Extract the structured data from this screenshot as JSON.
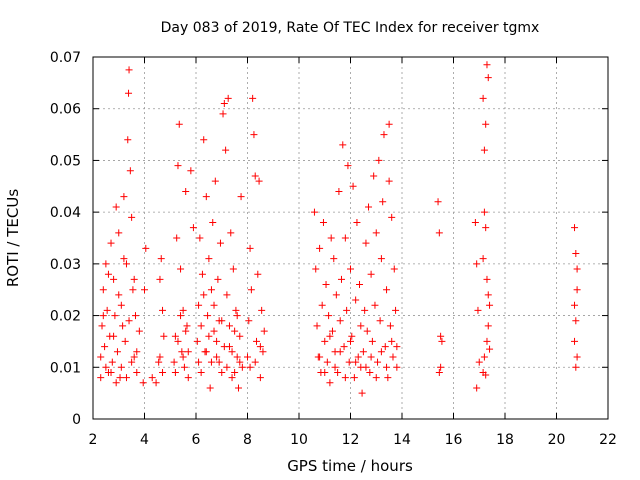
{
  "chart_data": {
    "type": "scatter",
    "title": "Day 083 of 2019, Rate Of TEC Index for receiver tgmx",
    "xlabel": "GPS time / hours",
    "ylabel": "ROTI / TECUs",
    "xlim": [
      2,
      22
    ],
    "ylim": [
      0,
      0.07
    ],
    "xticks": [
      "2",
      "4",
      "6",
      "8",
      "10",
      "12",
      "14",
      "16",
      "18",
      "20",
      "22"
    ],
    "yticks": [
      "0",
      "0.01",
      "0.02",
      "0.03",
      "0.04",
      "0.05",
      "0.06",
      "0.07"
    ],
    "grid": true,
    "marker": "+",
    "color": "#ff0000",
    "series": [
      {
        "name": "ROTI",
        "points": [
          [
            2.3,
            0.012
          ],
          [
            2.35,
            0.018
          ],
          [
            2.4,
            0.025
          ],
          [
            2.45,
            0.014
          ],
          [
            2.5,
            0.03
          ],
          [
            2.55,
            0.021
          ],
          [
            2.6,
            0.009
          ],
          [
            2.65,
            0.016
          ],
          [
            2.7,
            0.034
          ],
          [
            2.75,
            0.011
          ],
          [
            2.8,
            0.027
          ],
          [
            2.85,
            0.02
          ],
          [
            2.9,
            0.041
          ],
          [
            2.95,
            0.013
          ],
          [
            3.0,
            0.036
          ],
          [
            3.05,
            0.008
          ],
          [
            3.1,
            0.022
          ],
          [
            3.15,
            0.018
          ],
          [
            3.2,
            0.043
          ],
          [
            3.25,
            0.015
          ],
          [
            3.3,
            0.03
          ],
          [
            3.35,
            0.054
          ],
          [
            3.38,
            0.063
          ],
          [
            3.4,
            0.0675
          ],
          [
            3.45,
            0.048
          ],
          [
            3.5,
            0.039
          ],
          [
            3.55,
            0.025
          ],
          [
            3.6,
            0.012
          ],
          [
            3.65,
            0.02
          ],
          [
            3.7,
            0.009
          ],
          [
            3.8,
            0.017
          ],
          [
            2.3,
            0.008
          ],
          [
            2.5,
            0.01
          ],
          [
            2.7,
            0.009
          ],
          [
            2.9,
            0.007
          ],
          [
            3.1,
            0.01
          ],
          [
            3.3,
            0.008
          ],
          [
            3.5,
            0.011
          ],
          [
            3.7,
            0.013
          ],
          [
            2.4,
            0.02
          ],
          [
            2.6,
            0.028
          ],
          [
            2.8,
            0.016
          ],
          [
            3.0,
            0.024
          ],
          [
            3.2,
            0.031
          ],
          [
            3.4,
            0.019
          ],
          [
            3.6,
            0.027
          ],
          [
            3.95,
            0.007
          ],
          [
            4.0,
            0.025
          ],
          [
            4.05,
            0.033
          ],
          [
            4.3,
            0.008
          ],
          [
            4.45,
            0.007
          ],
          [
            4.55,
            0.011
          ],
          [
            4.6,
            0.027
          ],
          [
            4.65,
            0.031
          ],
          [
            4.7,
            0.021
          ],
          [
            4.75,
            0.016
          ],
          [
            4.6,
            0.012
          ],
          [
            4.7,
            0.009
          ],
          [
            5.15,
            0.011
          ],
          [
            5.2,
            0.016
          ],
          [
            5.25,
            0.035
          ],
          [
            5.3,
            0.049
          ],
          [
            5.35,
            0.057
          ],
          [
            5.4,
            0.029
          ],
          [
            5.45,
            0.013
          ],
          [
            5.5,
            0.021
          ],
          [
            5.55,
            0.01
          ],
          [
            5.6,
            0.044
          ],
          [
            5.65,
            0.018
          ],
          [
            5.7,
            0.008
          ],
          [
            5.8,
            0.048
          ],
          [
            5.9,
            0.037
          ],
          [
            5.2,
            0.009
          ],
          [
            5.3,
            0.015
          ],
          [
            5.4,
            0.02
          ],
          [
            5.5,
            0.012
          ],
          [
            5.6,
            0.017
          ],
          [
            5.7,
            0.013
          ],
          [
            6.05,
            0.015
          ],
          [
            6.1,
            0.022
          ],
          [
            6.15,
            0.035
          ],
          [
            6.2,
            0.009
          ],
          [
            6.25,
            0.028
          ],
          [
            6.3,
            0.054
          ],
          [
            6.35,
            0.013
          ],
          [
            6.4,
            0.043
          ],
          [
            6.45,
            0.02
          ],
          [
            6.5,
            0.031
          ],
          [
            6.55,
            0.006
          ],
          [
            6.6,
            0.025
          ],
          [
            6.65,
            0.038
          ],
          [
            6.7,
            0.017
          ],
          [
            6.75,
            0.046
          ],
          [
            6.8,
            0.012
          ],
          [
            6.85,
            0.027
          ],
          [
            6.9,
            0.019
          ],
          [
            6.95,
            0.034
          ],
          [
            7.0,
            0.009
          ],
          [
            7.05,
            0.059
          ],
          [
            7.1,
            0.061
          ],
          [
            7.15,
            0.052
          ],
          [
            7.2,
            0.024
          ],
          [
            7.25,
            0.062
          ],
          [
            7.3,
            0.014
          ],
          [
            7.35,
            0.036
          ],
          [
            7.4,
            0.008
          ],
          [
            7.45,
            0.029
          ],
          [
            7.5,
            0.017
          ],
          [
            7.55,
            0.021
          ],
          [
            7.6,
            0.012
          ],
          [
            7.65,
            0.006
          ],
          [
            7.7,
            0.016
          ],
          [
            7.75,
            0.043
          ],
          [
            7.8,
            0.01
          ],
          [
            6.1,
            0.011
          ],
          [
            6.2,
            0.018
          ],
          [
            6.3,
            0.024
          ],
          [
            6.4,
            0.013
          ],
          [
            6.5,
            0.016
          ],
          [
            6.6,
            0.011
          ],
          [
            6.7,
            0.022
          ],
          [
            6.8,
            0.015
          ],
          [
            6.9,
            0.011
          ],
          [
            7.0,
            0.019
          ],
          [
            7.1,
            0.014
          ],
          [
            7.2,
            0.01
          ],
          [
            7.3,
            0.018
          ],
          [
            7.4,
            0.013
          ],
          [
            7.5,
            0.009
          ],
          [
            7.6,
            0.02
          ],
          [
            7.7,
            0.011
          ],
          [
            8.0,
            0.012
          ],
          [
            8.05,
            0.019
          ],
          [
            8.1,
            0.033
          ],
          [
            8.15,
            0.025
          ],
          [
            8.2,
            0.062
          ],
          [
            8.25,
            0.055
          ],
          [
            8.3,
            0.047
          ],
          [
            8.35,
            0.015
          ],
          [
            8.4,
            0.028
          ],
          [
            8.45,
            0.046
          ],
          [
            8.5,
            0.008
          ],
          [
            8.55,
            0.021
          ],
          [
            8.6,
            0.013
          ],
          [
            8.65,
            0.017
          ],
          [
            8.1,
            0.01
          ],
          [
            8.3,
            0.011
          ],
          [
            8.5,
            0.014
          ],
          [
            10.6,
            0.04
          ],
          [
            10.65,
            0.029
          ],
          [
            10.7,
            0.018
          ],
          [
            10.75,
            0.012
          ],
          [
            10.8,
            0.033
          ],
          [
            10.85,
            0.009
          ],
          [
            10.9,
            0.022
          ],
          [
            10.95,
            0.038
          ],
          [
            11.0,
            0.015
          ],
          [
            11.05,
            0.026
          ],
          [
            11.1,
            0.011
          ],
          [
            11.15,
            0.02
          ],
          [
            11.2,
            0.007
          ],
          [
            11.25,
            0.035
          ],
          [
            11.3,
            0.017
          ],
          [
            11.35,
            0.031
          ],
          [
            11.4,
            0.013
          ],
          [
            11.45,
            0.024
          ],
          [
            11.5,
            0.009
          ],
          [
            11.55,
            0.044
          ],
          [
            11.6,
            0.019
          ],
          [
            11.65,
            0.027
          ],
          [
            11.7,
            0.053
          ],
          [
            11.75,
            0.014
          ],
          [
            11.8,
            0.035
          ],
          [
            11.85,
            0.021
          ],
          [
            11.9,
            0.049
          ],
          [
            11.95,
            0.011
          ],
          [
            12.0,
            0.029
          ],
          [
            12.05,
            0.016
          ],
          [
            12.1,
            0.045
          ],
          [
            12.15,
            0.008
          ],
          [
            12.2,
            0.023
          ],
          [
            12.25,
            0.038
          ],
          [
            12.3,
            0.012
          ],
          [
            12.35,
            0.026
          ],
          [
            12.4,
            0.018
          ],
          [
            12.45,
            0.005
          ],
          [
            10.8,
            0.012
          ],
          [
            11.0,
            0.009
          ],
          [
            11.2,
            0.016
          ],
          [
            11.4,
            0.01
          ],
          [
            11.6,
            0.013
          ],
          [
            11.8,
            0.008
          ],
          [
            12.0,
            0.015
          ],
          [
            12.2,
            0.011
          ],
          [
            12.4,
            0.01
          ],
          [
            12.5,
            0.013
          ],
          [
            12.55,
            0.021
          ],
          [
            12.6,
            0.034
          ],
          [
            12.65,
            0.017
          ],
          [
            12.7,
            0.041
          ],
          [
            12.75,
            0.009
          ],
          [
            12.8,
            0.028
          ],
          [
            12.85,
            0.015
          ],
          [
            12.9,
            0.047
          ],
          [
            12.95,
            0.022
          ],
          [
            13.0,
            0.036
          ],
          [
            13.05,
            0.011
          ],
          [
            13.1,
            0.05
          ],
          [
            13.15,
            0.019
          ],
          [
            13.2,
            0.031
          ],
          [
            13.25,
            0.042
          ],
          [
            13.3,
            0.055
          ],
          [
            13.35,
            0.014
          ],
          [
            13.4,
            0.025
          ],
          [
            13.45,
            0.008
          ],
          [
            13.5,
            0.046
          ],
          [
            13.55,
            0.018
          ],
          [
            13.6,
            0.039
          ],
          [
            13.65,
            0.012
          ],
          [
            13.7,
            0.029
          ],
          [
            13.75,
            0.021
          ],
          [
            13.8,
            0.01
          ],
          [
            13.5,
            0.057
          ],
          [
            12.6,
            0.01
          ],
          [
            12.8,
            0.012
          ],
          [
            13.0,
            0.008
          ],
          [
            13.2,
            0.013
          ],
          [
            13.4,
            0.01
          ],
          [
            13.6,
            0.015
          ],
          [
            13.8,
            0.014
          ],
          [
            15.4,
            0.042
          ],
          [
            15.45,
            0.036
          ],
          [
            15.5,
            0.016
          ],
          [
            15.55,
            0.015
          ],
          [
            15.45,
            0.009
          ],
          [
            15.5,
            0.01
          ],
          [
            16.85,
            0.038
          ],
          [
            16.9,
            0.03
          ],
          [
            16.95,
            0.021
          ],
          [
            17.0,
            0.011
          ],
          [
            16.9,
            0.006
          ],
          [
            17.15,
            0.062
          ],
          [
            17.2,
            0.052
          ],
          [
            17.25,
            0.037
          ],
          [
            17.3,
            0.027
          ],
          [
            17.35,
            0.018
          ],
          [
            17.2,
            0.012
          ],
          [
            17.25,
            0.0085
          ],
          [
            17.3,
            0.015
          ],
          [
            17.35,
            0.024
          ],
          [
            17.15,
            0.031
          ],
          [
            17.2,
            0.04
          ],
          [
            17.25,
            0.057
          ],
          [
            17.3,
            0.0685
          ],
          [
            17.35,
            0.066
          ],
          [
            17.4,
            0.022
          ],
          [
            17.15,
            0.009
          ],
          [
            17.4,
            0.0135
          ],
          [
            20.7,
            0.037
          ],
          [
            20.75,
            0.032
          ],
          [
            20.8,
            0.025
          ],
          [
            20.75,
            0.019
          ],
          [
            20.7,
            0.015
          ],
          [
            20.8,
            0.012
          ],
          [
            20.75,
            0.01
          ],
          [
            20.7,
            0.022
          ],
          [
            20.8,
            0.029
          ]
        ]
      }
    ]
  }
}
